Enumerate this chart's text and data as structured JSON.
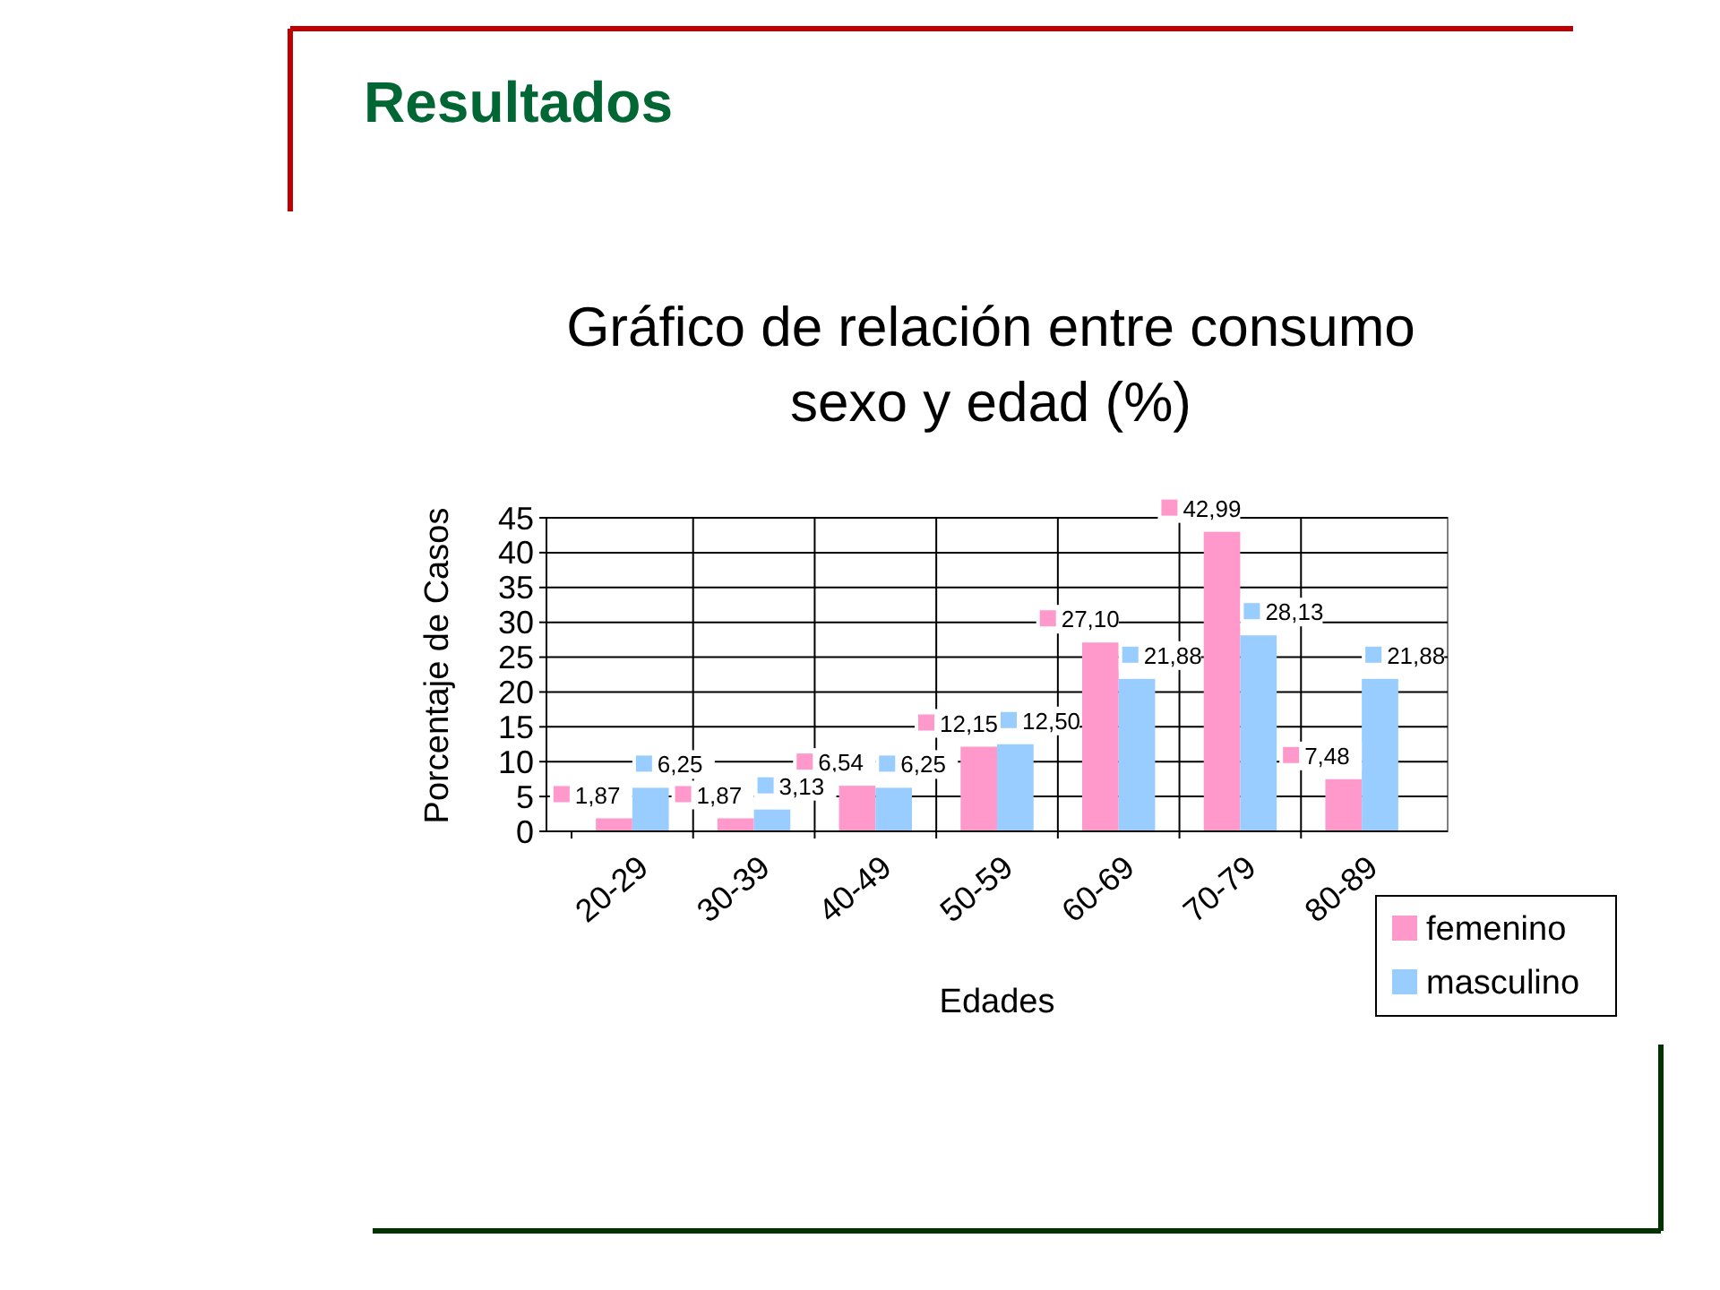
{
  "chart_data": {
    "type": "bar",
    "title": "Resultados",
    "subtitle": "Gráfico de relación entre consumo sexo y edad (%)",
    "xlabel": "Edades",
    "ylabel": "Porcentaje de Casos",
    "categories": [
      "20-29",
      "30-39",
      "40-49",
      "50-59",
      "60-69",
      "70-79",
      "80-89"
    ],
    "series": [
      {
        "name": "femenino",
        "color": "#ff99cc",
        "values": [
          1.87,
          1.87,
          6.54,
          12.15,
          27.1,
          42.99,
          7.48
        ],
        "value_labels": [
          "1,87",
          "1,87",
          "6,54",
          "12,15",
          "27,10",
          "42,99",
          "7,48"
        ]
      },
      {
        "name": "masculino",
        "color": "#99ccff",
        "values": [
          6.25,
          3.13,
          6.25,
          12.5,
          21.88,
          28.13,
          21.88
        ],
        "value_labels": [
          "6,25",
          "3,13",
          "6,25",
          "12,50",
          "21,88",
          "28,13",
          "21,88"
        ]
      }
    ],
    "ylim": [
      0,
      45
    ],
    "yticks": [
      0,
      5,
      10,
      15,
      20,
      25,
      30,
      35,
      40,
      45
    ],
    "grid": true,
    "legend": "bottom right"
  }
}
